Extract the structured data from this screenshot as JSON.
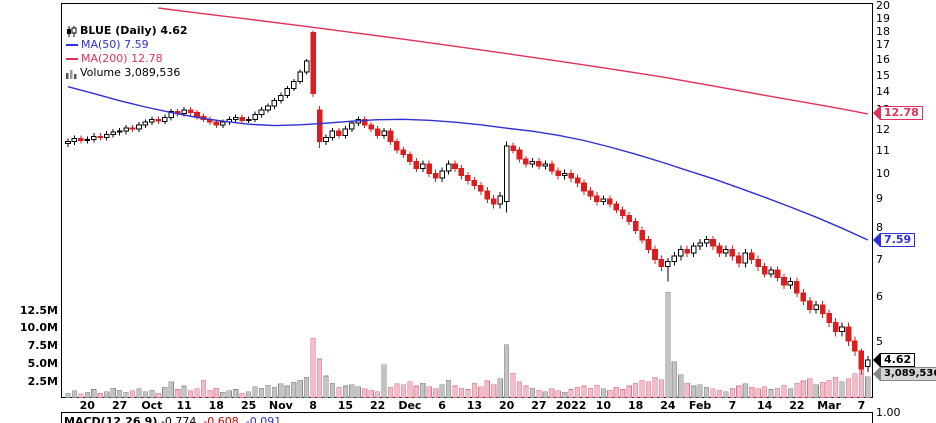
{
  "legend": {
    "symbol_label": "BLUE (Daily) 4.62",
    "ma50_label": "MA(50) 7.59",
    "ma200_label": "MA(200) 12.78",
    "volume_label": "Volume 3,089,536"
  },
  "tags": {
    "ma200": "12.78",
    "ma50": "7.59",
    "last": "4.62",
    "volume": "3,089,536"
  },
  "footer": {
    "macd_prefix": "MACD(12,26,9)",
    "macd_values": [
      "-0.774,",
      "-0.608,",
      "-0.091"
    ]
  },
  "axes": {
    "price_labels": [
      20,
      19,
      18,
      17,
      16,
      15,
      14,
      13,
      12,
      11,
      10,
      9,
      8,
      7,
      6,
      5
    ],
    "volume_ticks": [
      {
        "label": "12.5M",
        "value": 12.5
      },
      {
        "label": "10.0M",
        "value": 10
      },
      {
        "label": "7.5M",
        "value": 7.5
      },
      {
        "label": "5.0M",
        "value": 5
      },
      {
        "label": "2.5M",
        "value": 2.5
      }
    ],
    "bottom_right_label": "1.00"
  },
  "colors": {
    "up_candle": "#ffffff",
    "up_outline": "#000000",
    "down_candle": "#d81e1e",
    "ma50": "#2f2fd3",
    "ma200": "#e0315a",
    "vol_up_fill": "#c3c3c3",
    "vol_up_edge": "#8a8a8a",
    "vol_down_fill": "#f3bcc8",
    "vol_down_edge": "#d97790"
  },
  "chart_data": {
    "type": "candlestick",
    "title": "BLUE (Daily)",
    "last_price": 4.62,
    "ma50_last": 7.59,
    "ma200_last": 12.78,
    "last_volume": 3089536,
    "y_scale": "log",
    "price_range_visible": [
      4,
      20
    ],
    "x_tick_indices": [
      3,
      8,
      13,
      18,
      23,
      28,
      33,
      38,
      43,
      48,
      53,
      58,
      63,
      68,
      73,
      78,
      83,
      88,
      93,
      98,
      103,
      108,
      113,
      118,
      123
    ],
    "x_tick_labels": [
      "20",
      "27",
      "Oct",
      "11",
      "18",
      "25",
      "Nov",
      "8",
      "15",
      "22",
      "Dec",
      "6",
      "13",
      "20",
      "27",
      "2022",
      "10",
      "18",
      "24",
      "Feb",
      "7",
      "14",
      "22",
      "Mar",
      "7"
    ],
    "candles": {
      "open": [
        11.3,
        11.4,
        11.55,
        11.45,
        11.5,
        11.65,
        11.6,
        11.75,
        11.85,
        11.9,
        12.05,
        12.0,
        12.2,
        12.35,
        12.5,
        12.4,
        12.6,
        12.9,
        12.8,
        13.0,
        12.85,
        12.65,
        12.5,
        12.35,
        12.2,
        12.35,
        12.5,
        12.6,
        12.45,
        12.5,
        12.75,
        13.0,
        13.2,
        13.5,
        13.8,
        14.2,
        14.6,
        15.2,
        17.9,
        13.0,
        11.4,
        11.6,
        11.9,
        11.7,
        12.0,
        12.3,
        12.5,
        12.2,
        12.0,
        11.7,
        11.9,
        11.4,
        11.0,
        10.8,
        10.5,
        10.2,
        10.4,
        10.0,
        9.8,
        10.1,
        10.4,
        10.2,
        9.9,
        9.7,
        9.5,
        9.3,
        9.0,
        8.8,
        8.9,
        11.2,
        11.0,
        10.6,
        10.4,
        10.5,
        10.3,
        10.4,
        10.1,
        9.9,
        10.0,
        9.8,
        9.6,
        9.3,
        9.1,
        8.9,
        9.0,
        8.8,
        8.6,
        8.4,
        8.2,
        7.9,
        7.6,
        7.3,
        7.0,
        6.8,
        6.95,
        7.1,
        7.3,
        7.2,
        7.4,
        7.5,
        7.6,
        7.4,
        7.2,
        7.3,
        7.1,
        6.9,
        7.2,
        7.0,
        6.8,
        6.6,
        6.7,
        6.5,
        6.3,
        6.4,
        6.1,
        5.9,
        5.7,
        5.8,
        5.6,
        5.4,
        5.2,
        5.3,
        5.0,
        4.8,
        4.5
      ],
      "high": [
        11.55,
        11.7,
        11.7,
        11.65,
        11.8,
        11.8,
        11.9,
        12.0,
        12.05,
        12.2,
        12.2,
        12.35,
        12.5,
        12.65,
        12.65,
        12.75,
        13.05,
        13.05,
        13.15,
        13.15,
        13.0,
        12.8,
        12.65,
        12.5,
        12.5,
        12.65,
        12.75,
        12.75,
        12.65,
        12.9,
        13.15,
        13.35,
        13.65,
        13.95,
        14.35,
        14.75,
        15.35,
        16.05,
        18.05,
        13.2,
        11.75,
        12.05,
        12.05,
        12.15,
        12.45,
        12.65,
        12.65,
        12.35,
        12.15,
        12.05,
        12.05,
        11.55,
        11.15,
        10.95,
        10.65,
        10.55,
        10.55,
        10.15,
        10.25,
        10.55,
        10.55,
        10.35,
        10.05,
        9.85,
        9.65,
        9.45,
        9.15,
        9.25,
        11.4,
        11.35,
        11.15,
        10.75,
        10.65,
        10.65,
        10.55,
        10.55,
        10.25,
        10.15,
        10.15,
        9.95,
        9.75,
        9.45,
        9.25,
        9.12,
        9.12,
        8.92,
        8.72,
        8.52,
        8.32,
        8.02,
        7.72,
        7.42,
        7.12,
        7.05,
        7.22,
        7.42,
        7.42,
        7.52,
        7.62,
        7.72,
        7.72,
        7.52,
        7.42,
        7.42,
        7.22,
        7.32,
        7.32,
        7.12,
        6.9,
        6.8,
        6.8,
        6.6,
        6.5,
        6.5,
        6.2,
        6.0,
        5.9,
        5.9,
        5.7,
        5.5,
        5.4,
        5.4,
        5.1,
        4.85,
        4.7
      ],
      "low": [
        11.15,
        11.25,
        11.3,
        11.3,
        11.35,
        11.45,
        11.45,
        11.6,
        11.7,
        11.75,
        11.85,
        11.85,
        12.05,
        12.2,
        12.25,
        12.25,
        12.45,
        12.65,
        12.65,
        12.7,
        12.5,
        12.35,
        12.2,
        12.05,
        12.05,
        12.2,
        12.35,
        12.3,
        12.3,
        12.35,
        12.6,
        12.85,
        13.05,
        13.35,
        13.65,
        14.05,
        14.45,
        15.05,
        13.7,
        11.1,
        11.25,
        11.45,
        11.55,
        11.55,
        11.85,
        12.15,
        12.05,
        11.85,
        11.55,
        11.55,
        11.25,
        10.85,
        10.65,
        10.35,
        10.05,
        10.05,
        9.85,
        9.65,
        9.65,
        9.95,
        10.05,
        9.75,
        9.55,
        9.35,
        9.15,
        8.85,
        8.65,
        8.65,
        8.5,
        10.85,
        10.45,
        10.25,
        10.25,
        10.15,
        10.15,
        9.95,
        9.75,
        9.75,
        9.65,
        9.45,
        9.15,
        8.95,
        8.75,
        8.78,
        8.68,
        8.48,
        8.28,
        8.08,
        7.78,
        7.48,
        7.18,
        6.88,
        6.68,
        6.4,
        6.83,
        6.98,
        7.08,
        7.08,
        7.28,
        7.38,
        7.28,
        7.08,
        7.08,
        6.98,
        6.78,
        6.78,
        6.88,
        6.68,
        6.5,
        6.5,
        6.4,
        6.2,
        6.2,
        6.0,
        5.8,
        5.6,
        5.6,
        5.5,
        5.3,
        5.1,
        5.1,
        4.9,
        4.7,
        4.35,
        4.4
      ],
      "close": [
        11.4,
        11.55,
        11.45,
        11.5,
        11.65,
        11.6,
        11.75,
        11.85,
        11.9,
        12.05,
        12.0,
        12.2,
        12.35,
        12.5,
        12.4,
        12.6,
        12.9,
        12.8,
        13.0,
        12.85,
        12.65,
        12.5,
        12.35,
        12.2,
        12.35,
        12.5,
        12.6,
        12.45,
        12.5,
        12.75,
        13.0,
        13.2,
        13.5,
        13.8,
        14.2,
        14.6,
        15.2,
        15.9,
        13.9,
        11.4,
        11.6,
        11.9,
        11.7,
        12.0,
        12.3,
        12.5,
        12.2,
        12.0,
        11.7,
        11.9,
        11.4,
        11.0,
        10.8,
        10.5,
        10.2,
        10.4,
        10.0,
        9.8,
        10.1,
        10.4,
        10.2,
        9.9,
        9.7,
        9.5,
        9.3,
        9.0,
        8.8,
        9.1,
        11.2,
        11.0,
        10.6,
        10.4,
        10.5,
        10.3,
        10.4,
        10.1,
        9.9,
        10.0,
        9.8,
        9.6,
        9.3,
        9.1,
        8.9,
        9.0,
        8.8,
        8.6,
        8.4,
        8.2,
        7.9,
        7.6,
        7.3,
        7.0,
        6.8,
        6.95,
        7.1,
        7.3,
        7.2,
        7.4,
        7.5,
        7.6,
        7.4,
        7.2,
        7.3,
        7.1,
        6.9,
        7.2,
        7.0,
        6.8,
        6.6,
        6.7,
        6.5,
        6.3,
        6.4,
        6.1,
        5.9,
        5.7,
        5.8,
        5.6,
        5.4,
        5.2,
        5.3,
        5.0,
        4.8,
        4.45,
        4.62
      ]
    },
    "volume_millions": [
      0.8,
      1.1,
      0.7,
      0.9,
      1.3,
      0.8,
      1.0,
      1.5,
      1.2,
      0.9,
      1.1,
      1.4,
      1.0,
      1.2,
      0.8,
      1.6,
      2.4,
      1.3,
      1.8,
      1.1,
      1.4,
      2.6,
      1.2,
      1.5,
      0.9,
      1.1,
      1.3,
      0.8,
      1.0,
      1.7,
      1.5,
      1.9,
      1.6,
      2.1,
      1.8,
      2.3,
      2.6,
      3.0,
      8.5,
      5.6,
      3.2,
      2.2,
      1.6,
      1.8,
      2.0,
      1.7,
      1.4,
      1.2,
      1.0,
      4.8,
      1.6,
      2.1,
      2.0,
      2.4,
      1.8,
      2.2,
      1.7,
      1.4,
      2.0,
      2.6,
      1.8,
      1.5,
      1.3,
      2.2,
      1.7,
      2.5,
      2.0,
      2.8,
      7.6,
      3.6,
      2.4,
      1.8,
      1.5,
      1.2,
      1.0,
      1.4,
      1.1,
      0.9,
      1.3,
      1.6,
      1.8,
      1.5,
      1.9,
      1.4,
      1.2,
      1.6,
      1.3,
      1.8,
      2.2,
      2.6,
      2.4,
      3.0,
      2.7,
      15.0,
      5.2,
      3.4,
      2.2,
      1.8,
      2.0,
      1.6,
      1.4,
      1.2,
      1.0,
      1.5,
      1.8,
      2.1,
      1.6,
      1.4,
      1.7,
      1.3,
      1.5,
      1.9,
      1.4,
      2.2,
      2.5,
      2.8,
      2.0,
      2.3,
      2.6,
      3.0,
      2.4,
      2.8,
      3.5,
      4.6,
      3.1
    ],
    "ma50_points": [
      [
        0,
        14.3
      ],
      [
        4,
        13.9
      ],
      [
        8,
        13.5
      ],
      [
        12,
        13.15
      ],
      [
        16,
        12.85
      ],
      [
        20,
        12.6
      ],
      [
        24,
        12.4
      ],
      [
        28,
        12.25
      ],
      [
        32,
        12.18
      ],
      [
        36,
        12.22
      ],
      [
        40,
        12.3
      ],
      [
        44,
        12.4
      ],
      [
        48,
        12.48
      ],
      [
        52,
        12.5
      ],
      [
        56,
        12.45
      ],
      [
        60,
        12.35
      ],
      [
        64,
        12.22
      ],
      [
        68,
        12.05
      ],
      [
        72,
        11.9
      ],
      [
        76,
        11.7
      ],
      [
        80,
        11.45
      ],
      [
        84,
        11.15
      ],
      [
        88,
        10.82
      ],
      [
        92,
        10.48
      ],
      [
        96,
        10.12
      ],
      [
        100,
        9.78
      ],
      [
        104,
        9.42
      ],
      [
        108,
        9.06
      ],
      [
        112,
        8.7
      ],
      [
        116,
        8.34
      ],
      [
        120,
        7.97
      ],
      [
        124,
        7.59
      ]
    ],
    "ma200_points": [
      [
        14,
        19.8
      ],
      [
        20,
        19.4
      ],
      [
        28,
        18.9
      ],
      [
        36,
        18.4
      ],
      [
        44,
        17.9
      ],
      [
        52,
        17.4
      ],
      [
        60,
        16.9
      ],
      [
        68,
        16.4
      ],
      [
        76,
        15.9
      ],
      [
        84,
        15.4
      ],
      [
        92,
        14.9
      ],
      [
        100,
        14.35
      ],
      [
        108,
        13.8
      ],
      [
        116,
        13.3
      ],
      [
        120,
        13.05
      ],
      [
        124,
        12.78
      ]
    ]
  }
}
